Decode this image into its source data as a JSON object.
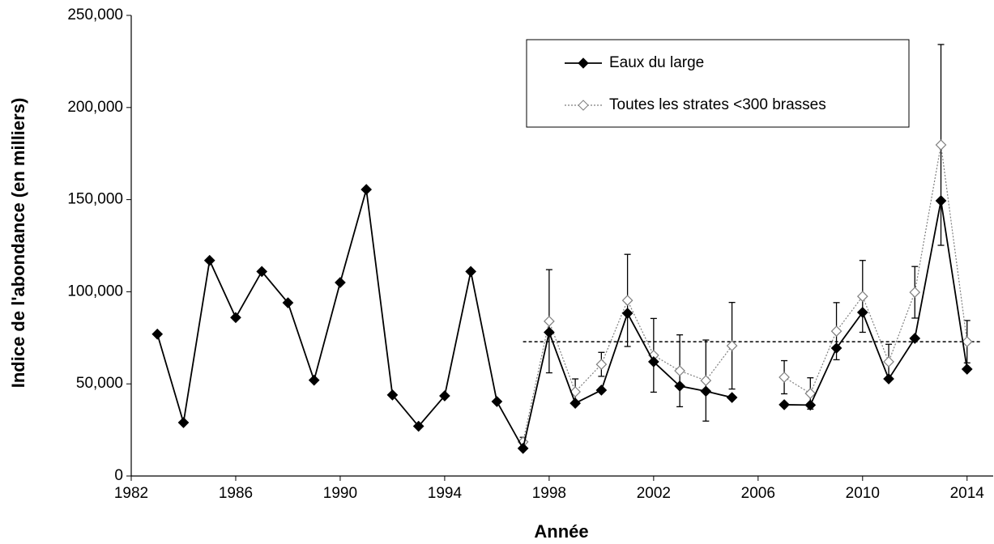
{
  "chart_data": {
    "type": "line",
    "x_label": "Année",
    "y_label": "Indice de l'abondance (en milliers)",
    "x": [
      1983,
      1984,
      1985,
      1986,
      1987,
      1988,
      1989,
      1990,
      1991,
      1992,
      1993,
      1994,
      1995,
      1996,
      1997,
      1998,
      1999,
      2000,
      2001,
      2002,
      2003,
      2004,
      2005,
      2006,
      2007,
      2008,
      2009,
      2010,
      2011,
      2012,
      2013,
      2014
    ],
    "series": [
      {
        "name": "Eaux du large",
        "color": "#000000",
        "marker": "filled-diamond",
        "line_style": "solid",
        "values": [
          77000,
          29000,
          117000,
          86000,
          111000,
          94000,
          52000,
          105000,
          155500,
          44000,
          27000,
          43500,
          111000,
          40400,
          15000,
          78000,
          39500,
          46600,
          88300,
          62000,
          48800,
          46000,
          42600,
          null,
          38700,
          38500,
          69400,
          88800,
          52700,
          74700,
          149400,
          58000
        ]
      },
      {
        "name": "Toutes les strates <300 brasses",
        "color": "#7f7f7f",
        "marker": "open-diamond",
        "line_style": "dotted",
        "values": [
          null,
          null,
          null,
          null,
          null,
          null,
          null,
          null,
          null,
          null,
          null,
          null,
          null,
          null,
          18500,
          84000,
          45700,
          60600,
          95300,
          65500,
          57100,
          51800,
          70700,
          null,
          53600,
          44800,
          78600,
          97500,
          62000,
          99700,
          179700,
          72900
        ],
        "error": [
          null,
          null,
          null,
          null,
          null,
          null,
          null,
          null,
          null,
          null,
          null,
          null,
          null,
          null,
          2500,
          28000,
          7000,
          6500,
          25000,
          20000,
          19500,
          22000,
          23500,
          null,
          9000,
          8500,
          15500,
          19500,
          9500,
          14000,
          54500,
          11500
        ]
      }
    ],
    "reference_line": {
      "value": 72900,
      "x": [
        1997,
        2014.5
      ],
      "color": "#000000"
    },
    "xlim": [
      1982,
      2015
    ],
    "xticks": [
      1982,
      1986,
      1990,
      1994,
      1998,
      2002,
      2006,
      2010,
      2014
    ],
    "ylim": [
      0,
      250000
    ],
    "yticks": [
      0,
      {
        "value": 50000,
        "label": "50,000"
      },
      {
        "value": 100000,
        "label": "100,000"
      },
      {
        "value": 150000,
        "label": "150,000"
      },
      {
        "value": 200000,
        "label": "200,000"
      },
      {
        "value": 250000,
        "label": "250,000"
      }
    ],
    "grid": false,
    "legend_position": "upper-right"
  }
}
